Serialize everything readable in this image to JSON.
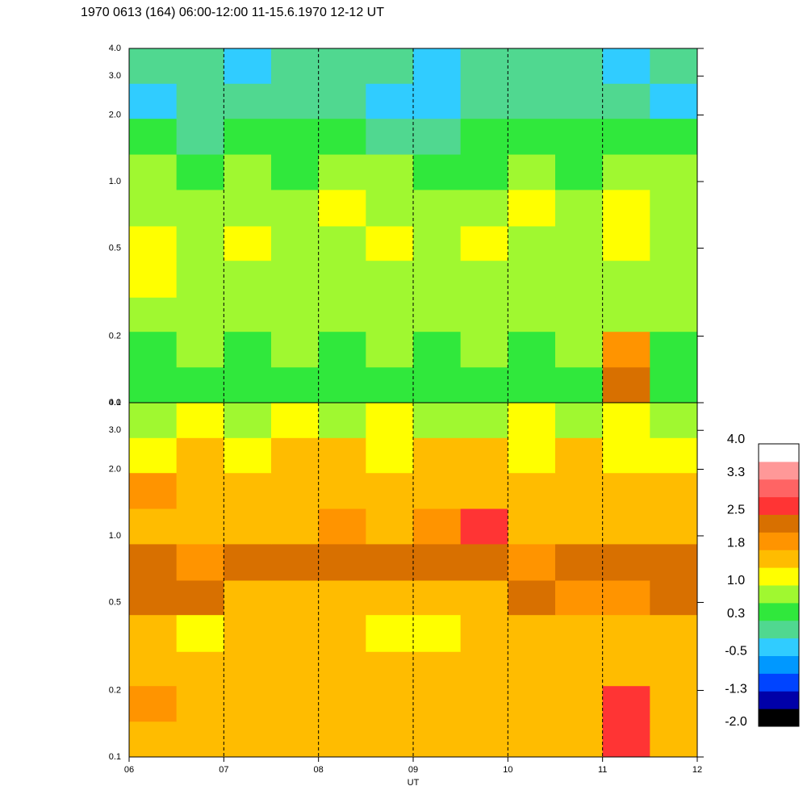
{
  "chart_data": {
    "type": "heatmap",
    "title": "1970 0613 (164) 06:00-12:00 11-15.6.1970  12-12 UT",
    "x_label": "UT",
    "xlim": [
      6,
      12
    ],
    "xticks": [
      {
        "value": 6,
        "label": "06"
      },
      {
        "value": 7,
        "label": "07"
      },
      {
        "value": 8,
        "label": "08"
      },
      {
        "value": 9,
        "label": "09"
      },
      {
        "value": 10,
        "label": "10"
      },
      {
        "value": 11,
        "label": "11"
      },
      {
        "value": 12,
        "label": "12"
      }
    ],
    "ylim": [
      0.1,
      4.0
    ],
    "yticks": [
      0.1,
      0.2,
      0.5,
      {
        "value": 1,
        "label": "1.0"
      },
      {
        "value": 2,
        "label": "2.0"
      },
      {
        "value": 3,
        "label": "3.0"
      },
      {
        "value": 4,
        "label": "4.0"
      }
    ],
    "y_scale": "log",
    "grid": true,
    "x_edges": [
      6,
      6.5,
      7,
      7.5,
      8,
      8.5,
      9,
      9.5,
      10,
      10.5,
      11,
      11.5,
      12
    ],
    "y_edges": [
      0.1,
      0.145,
      0.21,
      0.3,
      0.44,
      0.63,
      0.92,
      1.33,
      1.93,
      2.78,
      4.0
    ],
    "panels": [
      {
        "z": [
          [
            0.5,
            0.5,
            0.4,
            0.5,
            0.5,
            0.4,
            0.5,
            0.4,
            0.5,
            0.4,
            2.2,
            0.5
          ],
          [
            0.6,
            0.7,
            0.6,
            0.7,
            0.6,
            0.7,
            0.6,
            0.7,
            0.6,
            0.7,
            2.0,
            0.6
          ],
          [
            0.8,
            0.8,
            0.8,
            0.7,
            0.8,
            0.8,
            0.7,
            0.8,
            0.8,
            0.7,
            0.9,
            0.8
          ],
          [
            1.0,
            0.8,
            0.9,
            0.8,
            0.9,
            0.8,
            0.8,
            0.8,
            0.9,
            0.8,
            0.8,
            0.8
          ],
          [
            1.1,
            0.9,
            1.0,
            0.9,
            0.9,
            1.0,
            0.8,
            1.0,
            0.9,
            0.8,
            1.2,
            0.8
          ],
          [
            0.8,
            0.9,
            0.8,
            0.9,
            1.0,
            0.8,
            0.9,
            0.8,
            1.0,
            0.8,
            1.1,
            0.9
          ],
          [
            0.7,
            0.6,
            0.9,
            0.6,
            0.8,
            0.7,
            0.5,
            0.6,
            0.8,
            0.6,
            0.8,
            0.7
          ],
          [
            0.3,
            0.2,
            0.4,
            0.3,
            0.3,
            0.2,
            0.2,
            0.3,
            0.3,
            0.4,
            0.4,
            0.3
          ],
          [
            -0.4,
            0.0,
            0.1,
            -0.1,
            0.0,
            -0.2,
            -0.5,
            0.0,
            0.1,
            -0.1,
            0.0,
            -0.2
          ],
          [
            0.0,
            0.1,
            -0.2,
            0.1,
            0.0,
            -0.1,
            -0.4,
            0.1,
            0.0,
            0.0,
            -0.3,
            0.1
          ]
        ]
      },
      {
        "z": [
          [
            1.6,
            1.7,
            1.5,
            1.6,
            1.7,
            1.6,
            1.5,
            1.6,
            1.7,
            1.6,
            2.6,
            1.6
          ],
          [
            1.8,
            1.6,
            1.7,
            1.5,
            1.6,
            1.7,
            1.6,
            1.7,
            1.6,
            1.5,
            2.6,
            1.7
          ],
          [
            1.5,
            1.4,
            1.6,
            1.4,
            1.5,
            1.4,
            1.5,
            1.4,
            1.6,
            1.5,
            1.6,
            1.4
          ],
          [
            1.4,
            1.3,
            1.5,
            1.6,
            1.4,
            1.3,
            1.3,
            1.4,
            1.5,
            1.4,
            1.4,
            1.5
          ],
          [
            2.2,
            2.2,
            1.6,
            1.5,
            1.6,
            1.5,
            1.4,
            1.5,
            2.2,
            1.8,
            1.9,
            2.2
          ],
          [
            2.2,
            2.1,
            2.2,
            2.2,
            2.2,
            2.3,
            2.2,
            2.2,
            1.8,
            2.2,
            2.3,
            2.2
          ],
          [
            1.5,
            1.4,
            1.5,
            1.6,
            1.8,
            1.6,
            1.9,
            2.6,
            1.6,
            1.5,
            1.6,
            1.5
          ],
          [
            1.8,
            1.6,
            1.7,
            1.6,
            1.5,
            1.7,
            1.6,
            1.5,
            1.6,
            1.7,
            1.6,
            1.5
          ],
          [
            1.2,
            1.4,
            1.3,
            1.5,
            1.4,
            1.3,
            1.5,
            1.4,
            1.3,
            1.4,
            1.3,
            1.2
          ],
          [
            0.9,
            1.1,
            0.8,
            1.0,
            0.9,
            1.0,
            0.8,
            0.9,
            1.1,
            0.9,
            1.0,
            0.8
          ]
        ]
      }
    ],
    "colorbar": {
      "lim": [
        -2,
        4
      ],
      "colors": [
        "#000000",
        "#0000a8",
        "#0044ff",
        "#0098ff",
        "#30ccff",
        "#50d890",
        "#30e83c",
        "#a0f830",
        "#ffff00",
        "#ffbc00",
        "#ff9400",
        "#d87000",
        "#ff3434",
        "#ff6464",
        "#ff9898",
        "#ffffff"
      ],
      "ticks": [
        {
          "value": 4,
          "label": "4.0"
        },
        3.3,
        2.5,
        1.8,
        {
          "value": 1,
          "label": "1.0"
        },
        0.3,
        -0.5,
        -1.3,
        {
          "value": -2,
          "label": "-2.0"
        }
      ]
    }
  }
}
